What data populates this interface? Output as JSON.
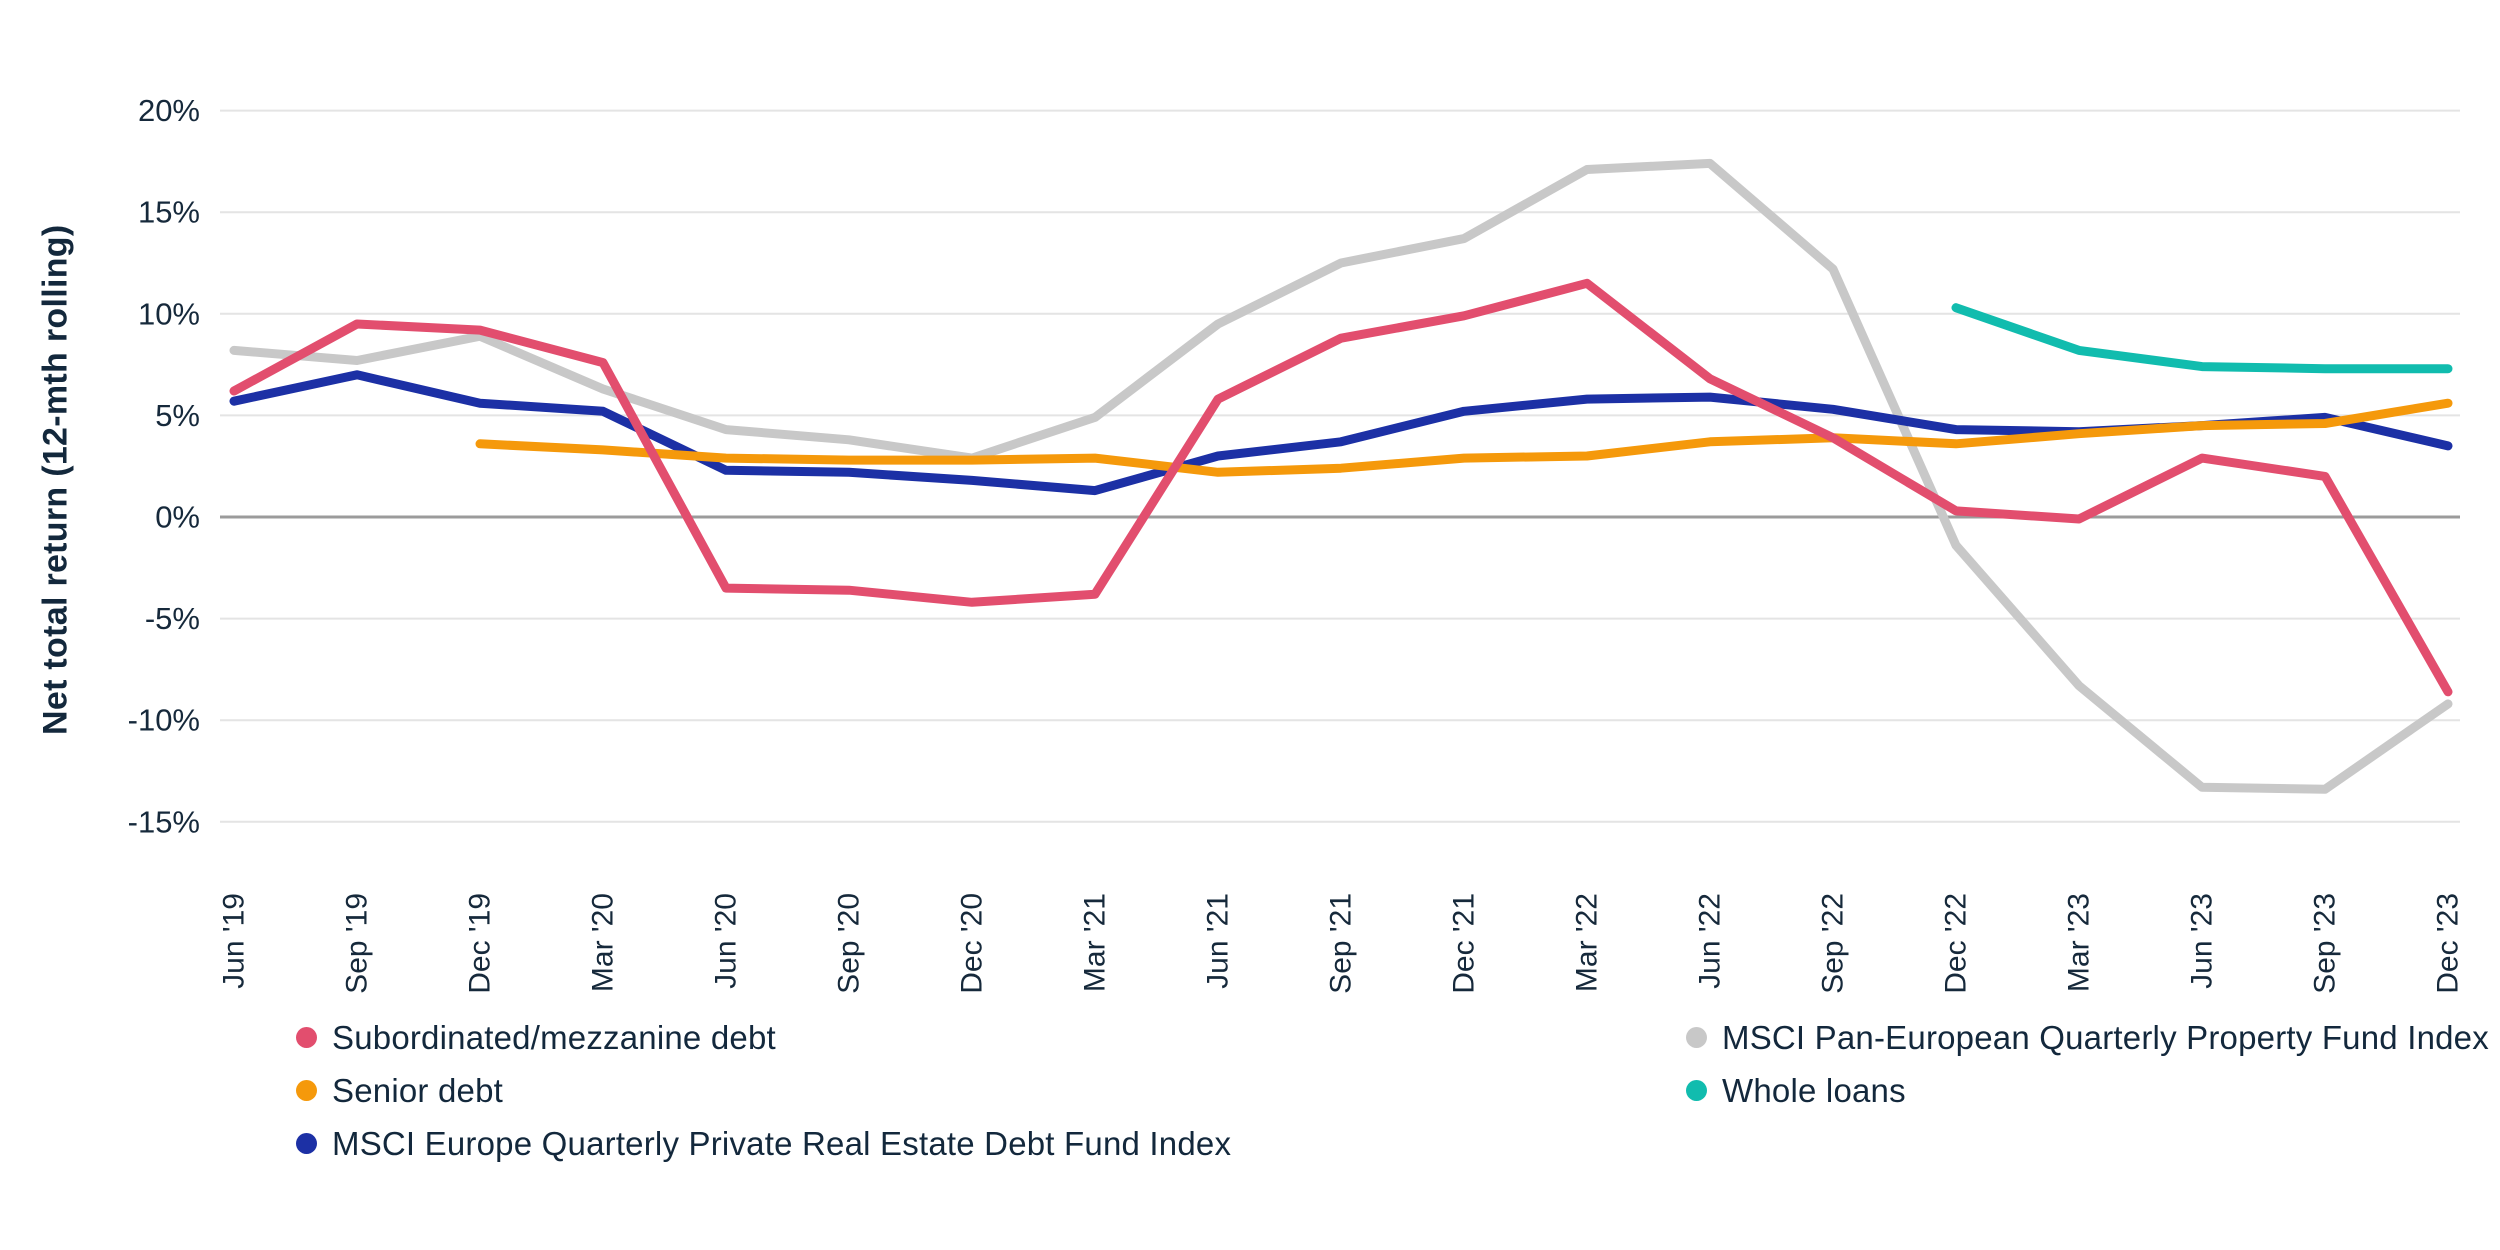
{
  "page": {
    "background": "#ffffff"
  },
  "chart_data": {
    "type": "line",
    "title": "",
    "xlabel": "",
    "ylabel": "Net total return (12-mth rolling)",
    "ylim": [
      -17,
      22
    ],
    "yticks": [
      20,
      15,
      10,
      5,
      0,
      -5,
      -10,
      -15
    ],
    "ytick_suffix": "%",
    "grid": "horizontal",
    "grid_color": "#e4e4e4",
    "zero_line_color": "#9b9b9b",
    "legend_position": "bottom",
    "categories": [
      "Jun '19",
      "Sep '19",
      "Dec '19",
      "Mar '20",
      "Jun '20",
      "Sep '20",
      "Dec '20",
      "Mar '21",
      "Jun '21",
      "Sep '21",
      "Dec '21",
      "Mar '22",
      "Jun '22",
      "Sep '22",
      "Dec '22",
      "Mar '23",
      "Jun '23",
      "Sep '23",
      "Dec '23"
    ],
    "series": [
      {
        "name": "Subordinated/mezzanine debt",
        "color": "#e24e6e",
        "values": [
          6.2,
          9.5,
          9.2,
          7.6,
          -3.5,
          -3.6,
          -4.2,
          -3.8,
          5.8,
          8.8,
          9.9,
          11.5,
          6.8,
          3.9,
          0.3,
          -0.1,
          2.9,
          2.0,
          -8.6
        ]
      },
      {
        "name": "Senior debt",
        "color": "#f5990b",
        "values": [
          null,
          null,
          3.6,
          3.3,
          2.9,
          2.8,
          2.8,
          2.9,
          2.2,
          2.4,
          2.9,
          3.0,
          3.7,
          3.9,
          3.6,
          4.1,
          4.5,
          4.6,
          5.6
        ]
      },
      {
        "name": "MSCI Europe Quarterly Private Real Estate Debt Fund Index",
        "color": "#1c30a5",
        "values": [
          5.7,
          7.0,
          5.6,
          5.2,
          2.3,
          2.2,
          1.8,
          1.3,
          3.0,
          3.7,
          5.2,
          5.8,
          5.9,
          5.3,
          4.3,
          4.2,
          4.5,
          4.9,
          3.5
        ]
      },
      {
        "name": "MSCI Pan-European Quarterly Property Fund Index",
        "color": "#c8c8c8",
        "values": [
          8.2,
          7.7,
          8.9,
          6.3,
          4.3,
          3.8,
          2.9,
          4.9,
          9.5,
          12.5,
          13.7,
          17.1,
          17.4,
          12.2,
          -1.4,
          -8.3,
          -13.3,
          -13.4,
          -9.2
        ]
      },
      {
        "name": "Whole loans",
        "color": "#11bcae",
        "values": [
          null,
          null,
          null,
          null,
          null,
          null,
          null,
          null,
          null,
          null,
          null,
          null,
          null,
          null,
          10.3,
          8.2,
          7.4,
          7.3,
          7.3
        ]
      }
    ]
  },
  "legend": {
    "col1": [
      {
        "label": "Subordinated/mezzanine debt",
        "series": 0
      },
      {
        "label": "Senior debt",
        "series": 1
      },
      {
        "label": "MSCI Europe Quarterly Private Real Estate Debt Fund Index",
        "series": 2
      }
    ],
    "col2": [
      {
        "label": "MSCI Pan-European Quarterly Property Fund Index",
        "series": 3
      },
      {
        "label": "Whole loans",
        "series": 4
      }
    ]
  }
}
